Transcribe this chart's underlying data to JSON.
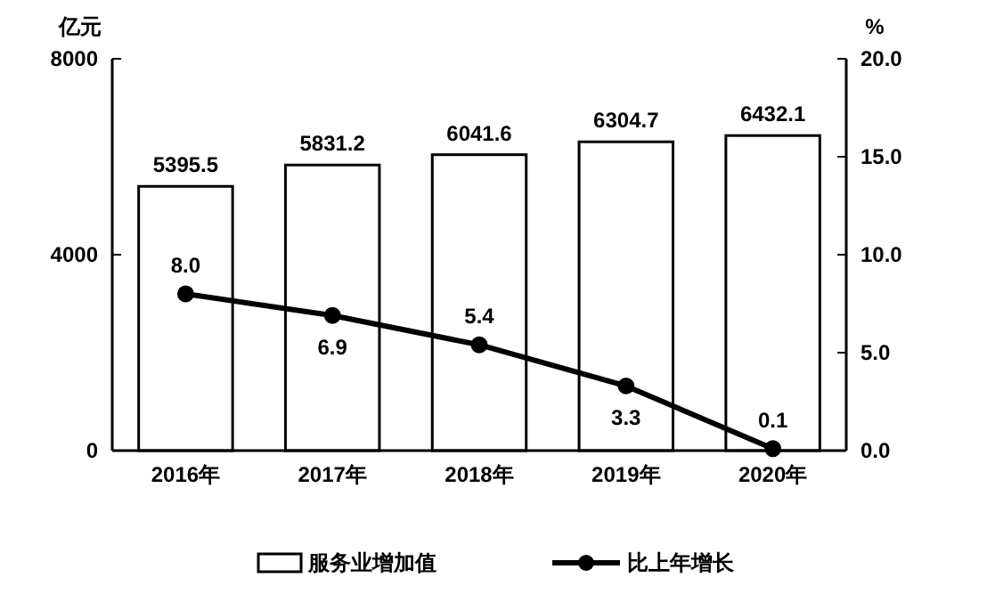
{
  "chart_data": {
    "type": "bar",
    "categories": [
      "2016年",
      "2017年",
      "2018年",
      "2019年",
      "2020年"
    ],
    "ylabel": "亿元",
    "y2label": "%",
    "series": [
      {
        "name": "服务业增加值",
        "color": "#ffffff",
        "values": [
          5395.5,
          5831.2,
          6041.6,
          6304.7,
          6432.1
        ]
      },
      {
        "name": "比上年增长",
        "type": "line",
        "axis": "y2",
        "color": "#000000",
        "values": [
          8.0,
          6.9,
          5.4,
          3.3,
          0.1
        ],
        "value_labels": [
          "8.0",
          "6.9",
          "5.4",
          "3.3",
          "0.1"
        ]
      }
    ],
    "ylim": [
      0,
      8000
    ],
    "yticks": [
      0,
      4000,
      8000
    ],
    "y2lim": [
      0,
      20
    ],
    "y2ticks": [
      {
        "value": 0,
        "label": "0.0"
      },
      {
        "value": 5,
        "label": "5.0"
      },
      {
        "value": 10,
        "label": "10.0"
      },
      {
        "value": 15,
        "label": "15.0"
      },
      {
        "value": 20,
        "label": "20.0"
      }
    ],
    "data_labels": true,
    "legend": "bottom",
    "marker": "circle",
    "line_style": "solid"
  }
}
